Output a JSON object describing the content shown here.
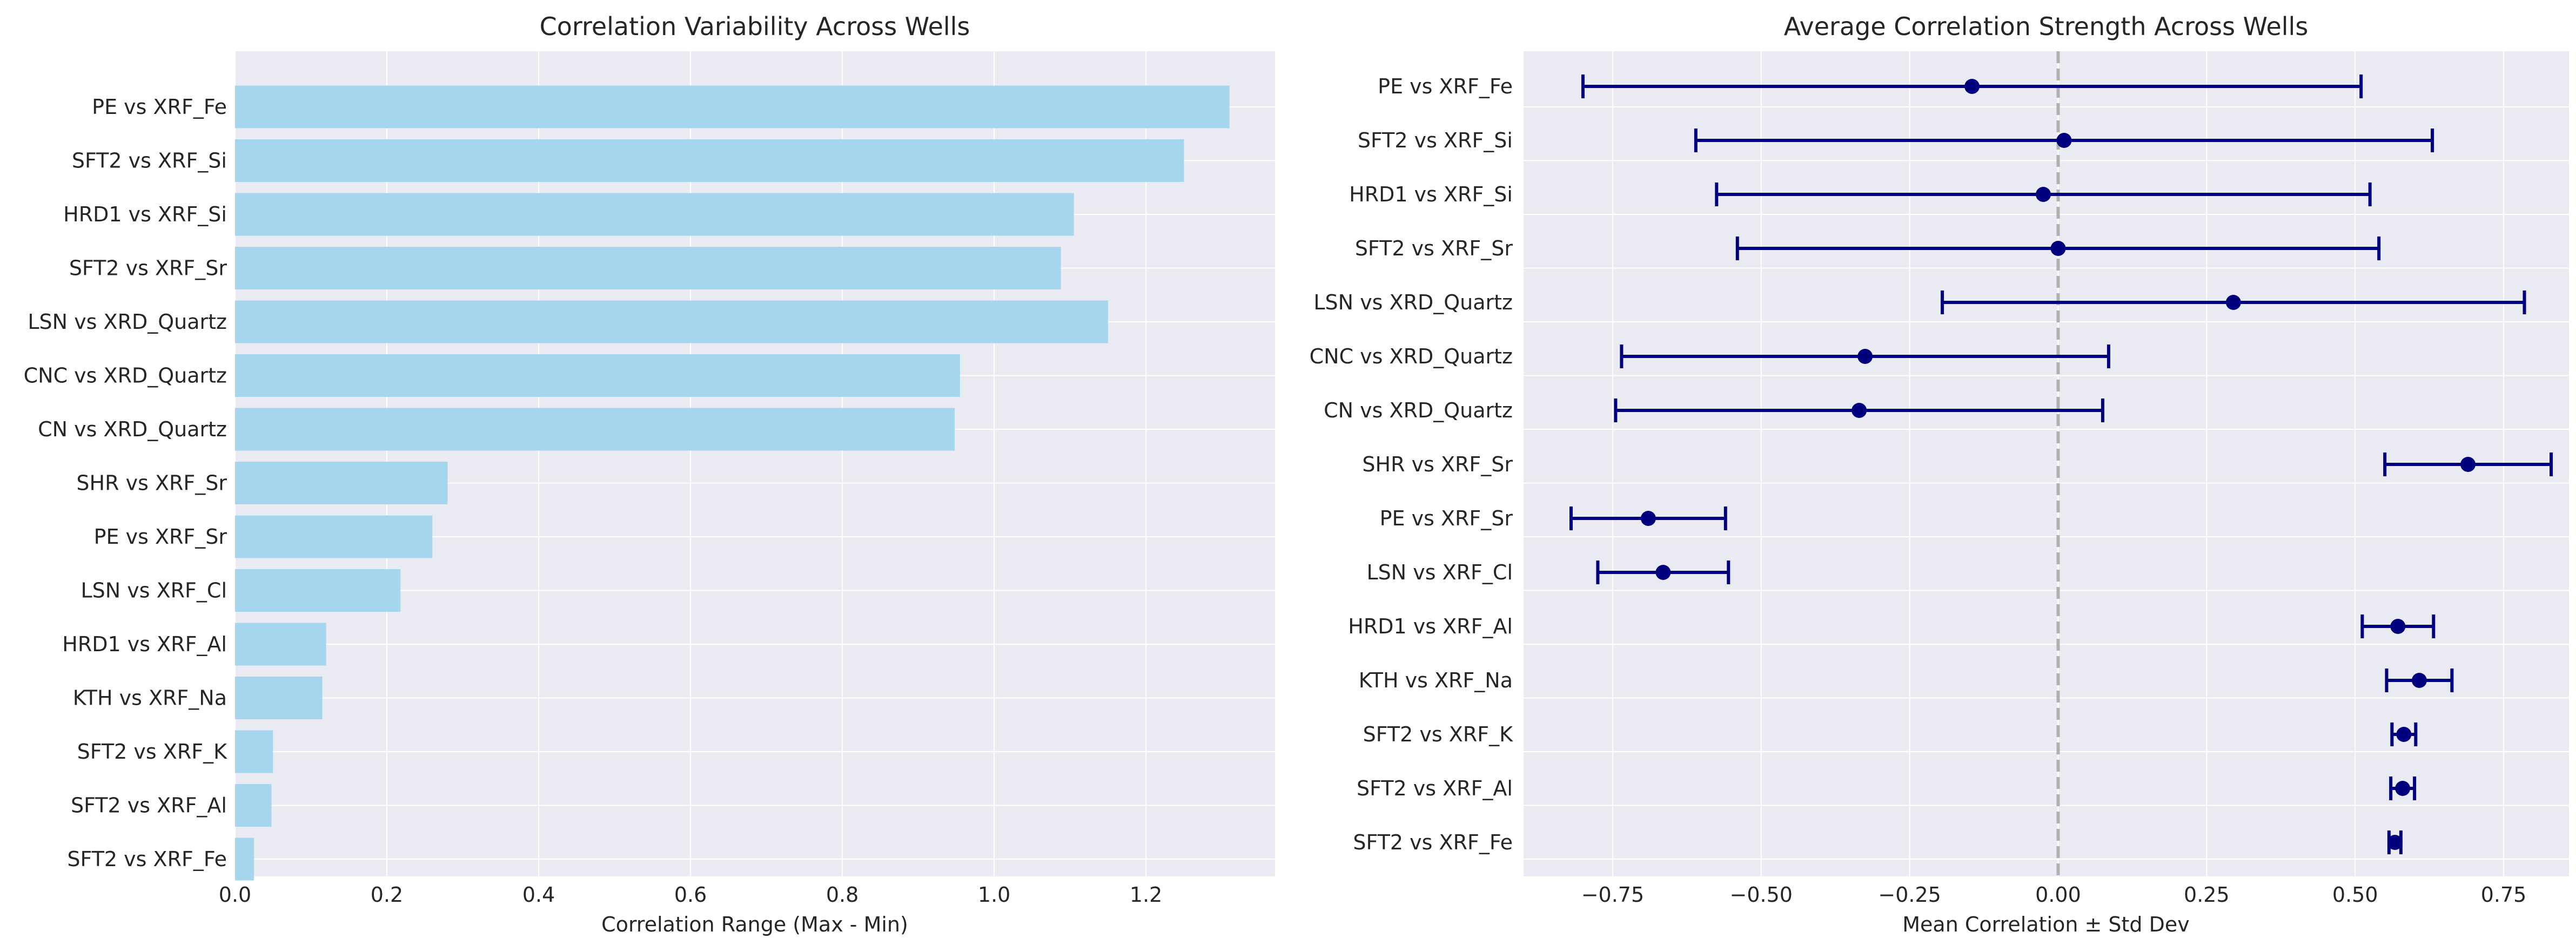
{
  "chart_data": [
    {
      "type": "bar",
      "orientation": "horizontal",
      "title": "Correlation Variability Across Wells",
      "xlabel": "Correlation Range (Max - Min)",
      "ylabel": "",
      "xlim": [
        0,
        1.37
      ],
      "xticks": [
        0.0,
        0.2,
        0.4,
        0.6,
        0.8,
        1.0,
        1.2
      ],
      "xtick_labels": [
        "0.0",
        "0.2",
        "0.4",
        "0.6",
        "0.8",
        "1.0",
        "1.2"
      ],
      "grid": true,
      "colors": {
        "bar": "#a6d5ee",
        "background": "#eaeaf2",
        "grid": "#ffffff"
      },
      "categories": [
        "PE vs XRF_Fe",
        "SFT2 vs XRF_Si",
        "HRD1 vs XRF_Si",
        "SFT2 vs XRF_Sr",
        "LSN vs XRD_Quartz",
        "CNC vs XRD_Quartz",
        "CN vs XRD_Quartz",
        "SHR vs XRF_Sr",
        "PE vs XRF_Sr",
        "LSN vs XRF_Cl",
        "HRD1 vs XRF_Al",
        "KTH vs XRF_Na",
        "SFT2 vs XRF_K",
        "SFT2 vs XRF_Al",
        "SFT2 vs XRF_Fe"
      ],
      "values": [
        1.31,
        1.25,
        1.105,
        1.088,
        1.15,
        0.955,
        0.948,
        0.28,
        0.26,
        0.218,
        0.12,
        0.115,
        0.05,
        0.048,
        0.025
      ]
    },
    {
      "type": "scatter",
      "subtype": "errorbar",
      "title": "Average Correlation Strength Across Wells",
      "xlabel": "Mean Correlation ± Std Dev",
      "ylabel": "",
      "xlim": [
        -0.9,
        0.86
      ],
      "xticks": [
        -0.75,
        -0.5,
        -0.25,
        0.0,
        0.25,
        0.5,
        0.75
      ],
      "xtick_labels": [
        "−0.75",
        "−0.50",
        "−0.25",
        "0.00",
        "0.25",
        "0.50",
        "0.75"
      ],
      "reference_line": {
        "x": 0.0,
        "style": "dashed",
        "color": "#b0b0b0"
      },
      "grid": true,
      "colors": {
        "marker": "#00007f",
        "errorbar": "#00007f",
        "background": "#eaeaf2",
        "grid": "#ffffff"
      },
      "categories": [
        "PE vs XRF_Fe",
        "SFT2 vs XRF_Si",
        "HRD1 vs XRF_Si",
        "SFT2 vs XRF_Sr",
        "LSN vs XRD_Quartz",
        "CNC vs XRD_Quartz",
        "CN vs XRD_Quartz",
        "SHR vs XRF_Sr",
        "PE vs XRF_Sr",
        "LSN vs XRF_Cl",
        "HRD1 vs XRF_Al",
        "KTH vs XRF_Na",
        "SFT2 vs XRF_K",
        "SFT2 vs XRF_Al",
        "SFT2 vs XRF_Fe"
      ],
      "means": [
        -0.145,
        0.01,
        -0.025,
        0.0,
        0.295,
        -0.325,
        -0.335,
        0.69,
        -0.69,
        -0.665,
        0.572,
        0.608,
        0.582,
        0.58,
        0.567
      ],
      "std": [
        0.655,
        0.62,
        0.55,
        0.54,
        0.49,
        0.41,
        0.41,
        0.14,
        0.13,
        0.11,
        0.06,
        0.055,
        0.02,
        0.02,
        0.01
      ]
    }
  ]
}
